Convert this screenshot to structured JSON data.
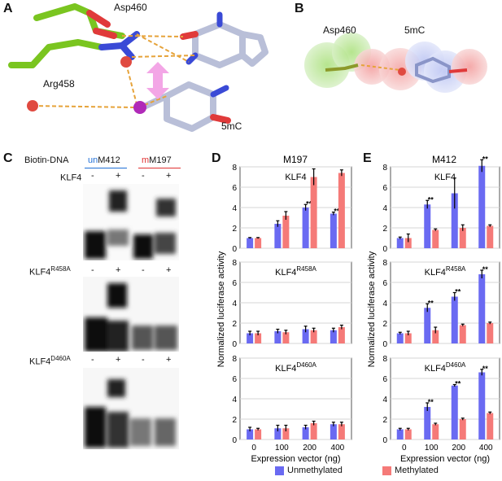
{
  "panels": {
    "A": "A",
    "B": "B",
    "C": "C",
    "D": "D",
    "E": "E"
  },
  "structure_A": {
    "asp_label": "Asp460",
    "arg_label": "Arg458",
    "base_label": "5mC"
  },
  "structure_B": {
    "asp_label": "Asp460",
    "base_label": "5mC"
  },
  "gel": {
    "biotin_label": "Biotin-DNA",
    "un_prefix": "un",
    "un_suffix": "M412",
    "m_prefix": "m",
    "m_suffix": "M197",
    "row_labels": [
      {
        "main": "KLF4",
        "sup": ""
      },
      {
        "main": "KLF4",
        "sup": "R458A"
      },
      {
        "main": "KLF4",
        "sup": "D460A"
      }
    ],
    "lane_signs": [
      "-",
      "+",
      "-",
      "+"
    ],
    "colors": {
      "un": "#1f6fd6",
      "m": "#e03030"
    }
  },
  "colors": {
    "unmethylated": "#6a6af2",
    "methylated": "#f57a78"
  },
  "legend": {
    "unmethylated": "Unmethylated",
    "methylated": "Methylated"
  },
  "chart_data": [
    {
      "type": "bar",
      "panel": "D",
      "title": "M197",
      "xlabel": "Expression vector (ng)",
      "ylabel": "Normalized luciferase activity",
      "categories": [
        "0",
        "100",
        "200",
        "400"
      ],
      "subplots": [
        {
          "label": "KLF4",
          "sup": "",
          "ylim": [
            0,
            8
          ],
          "yticks": [
            0,
            2,
            4,
            6,
            8
          ],
          "series": [
            {
              "name": "Unmethylated",
              "values": [
                1.0,
                2.4,
                4.0,
                3.4
              ],
              "errors": [
                0.05,
                0.3,
                0.3,
                0.15
              ],
              "sig": [
                "",
                "",
                "**",
                "**"
              ]
            },
            {
              "name": "Methylated",
              "values": [
                1.0,
                3.2,
                7.0,
                7.4
              ],
              "errors": [
                0.05,
                0.4,
                0.8,
                0.3
              ],
              "sig": [
                "",
                "",
                "",
                ""
              ]
            }
          ]
        },
        {
          "label": "KLF4",
          "sup": "R458A",
          "ylim": [
            0,
            8
          ],
          "yticks": [
            0,
            2,
            4,
            6,
            8
          ],
          "series": [
            {
              "name": "Unmethylated",
              "values": [
                1.0,
                1.2,
                1.4,
                1.3
              ],
              "errors": [
                0.2,
                0.2,
                0.3,
                0.2
              ],
              "sig": [
                "",
                "",
                "",
                ""
              ]
            },
            {
              "name": "Methylated",
              "values": [
                1.0,
                1.1,
                1.3,
                1.6
              ],
              "errors": [
                0.2,
                0.2,
                0.2,
                0.2
              ],
              "sig": [
                "",
                "",
                "",
                ""
              ]
            }
          ]
        },
        {
          "label": "KLF4",
          "sup": "D460A",
          "ylim": [
            0,
            8
          ],
          "yticks": [
            0,
            2,
            4,
            6,
            8
          ],
          "series": [
            {
              "name": "Unmethylated",
              "values": [
                1.0,
                1.1,
                1.2,
                1.5
              ],
              "errors": [
                0.2,
                0.3,
                0.2,
                0.2
              ],
              "sig": [
                "",
                "",
                "",
                ""
              ]
            },
            {
              "name": "Methylated",
              "values": [
                1.0,
                1.1,
                1.6,
                1.5
              ],
              "errors": [
                0.1,
                0.3,
                0.2,
                0.2
              ],
              "sig": [
                "",
                "",
                "",
                ""
              ]
            }
          ]
        }
      ]
    },
    {
      "type": "bar",
      "panel": "E",
      "title": "M412",
      "xlabel": "Expression vector (ng)",
      "ylabel": "Normalized luciferase activity",
      "categories": [
        "0",
        "100",
        "200",
        "400"
      ],
      "subplots": [
        {
          "label": "KLF4",
          "sup": "",
          "ylim": [
            0,
            8
          ],
          "yticks": [
            0,
            2,
            4,
            6,
            8
          ],
          "series": [
            {
              "name": "Unmethylated",
              "values": [
                1.0,
                4.3,
                5.4,
                8.1
              ],
              "errors": [
                0.1,
                0.4,
                1.5,
                0.6
              ],
              "sig": [
                "",
                "**",
                "",
                "**"
              ]
            },
            {
              "name": "Methylated",
              "values": [
                1.0,
                1.8,
                2.0,
                2.2
              ],
              "errors": [
                0.4,
                0.1,
                0.3,
                0.1
              ],
              "sig": [
                "",
                "",
                "",
                ""
              ]
            }
          ]
        },
        {
          "label": "KLF4",
          "sup": "R458A",
          "ylim": [
            0,
            8
          ],
          "yticks": [
            0,
            2,
            4,
            6,
            8
          ],
          "series": [
            {
              "name": "Unmethylated",
              "values": [
                1.0,
                3.5,
                4.6,
                6.8
              ],
              "errors": [
                0.1,
                0.4,
                0.4,
                0.4
              ],
              "sig": [
                "",
                "**",
                "**",
                "**"
              ]
            },
            {
              "name": "Methylated",
              "values": [
                1.0,
                1.3,
                1.8,
                2.0
              ],
              "errors": [
                0.2,
                0.3,
                0.1,
                0.1
              ],
              "sig": [
                "",
                "",
                "",
                ""
              ]
            }
          ]
        },
        {
          "label": "KLF4",
          "sup": "D460A",
          "ylim": [
            0,
            8
          ],
          "yticks": [
            0,
            2,
            4,
            6,
            8
          ],
          "series": [
            {
              "name": "Unmethylated",
              "values": [
                1.0,
                3.2,
                5.3,
                6.6
              ],
              "errors": [
                0.1,
                0.4,
                0.1,
                0.3
              ],
              "sig": [
                "",
                "**",
                "**",
                "**"
              ]
            },
            {
              "name": "Methylated",
              "values": [
                1.0,
                1.5,
                2.0,
                2.6
              ],
              "errors": [
                0.1,
                0.1,
                0.1,
                0.1
              ],
              "sig": [
                "",
                "",
                "",
                ""
              ]
            }
          ]
        }
      ]
    }
  ]
}
